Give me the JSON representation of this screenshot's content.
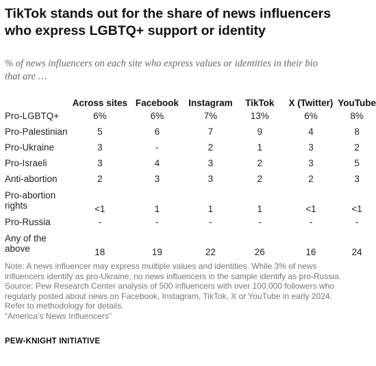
{
  "header": {
    "title_lines": [
      "TikTok stands out for the share of news influencers",
      "who express LGBTQ+ support or identity"
    ],
    "subtitle_lines": [
      "% of news influencers on each site who express values or identities in their bio",
      "that are …"
    ]
  },
  "chart_data": {
    "type": "table",
    "columns": [
      "Across sites",
      "Facebook",
      "Instagram",
      "TikTok",
      "X (Twitter)",
      "YouTube"
    ],
    "rows": [
      {
        "label": [
          "Pro-LGBTQ+"
        ],
        "values": [
          "6%",
          "6%",
          "7%",
          "13%",
          "6%",
          "8%"
        ]
      },
      {
        "label": [
          "Pro-Palestinian"
        ],
        "values": [
          "5",
          "6",
          "7",
          "9",
          "4",
          "8"
        ]
      },
      {
        "label": [
          "Pro-Ukraine"
        ],
        "values": [
          "3",
          "-",
          "2",
          "1",
          "3",
          "2"
        ]
      },
      {
        "label": [
          "Pro-Israeli"
        ],
        "values": [
          "3",
          "4",
          "3",
          "2",
          "3",
          "5"
        ]
      },
      {
        "label": [
          "Anti-abortion"
        ],
        "values": [
          "2",
          "3",
          "3",
          "2",
          "2",
          "3"
        ]
      },
      {
        "label": [
          "Pro-abortion",
          "rights"
        ],
        "values": [
          "<1",
          "1",
          "1",
          "1",
          "<1",
          "<1"
        ]
      },
      {
        "label": [
          "Pro-Russia"
        ],
        "values": [
          "-",
          "-",
          "-",
          "-",
          "-",
          "-"
        ]
      },
      {
        "label": [
          "Any of the",
          "above"
        ],
        "values": [
          "18",
          "19",
          "22",
          "26",
          "16",
          "24"
        ]
      }
    ]
  },
  "notes": {
    "lines": [
      "Note: A news influencer may express multiple values and identities. While 3% of news",
      "influencers identify as pro-Ukraine, no news influencers in the sample identify as pro-Russia.",
      "Source: Pew Research Center analysis of 500 influencers with over 100,000 followers who",
      "regularly posted about news on Facebook, Instagram, TikTok, X or YouTube in early 2024.",
      "Refer to methodology for details.",
      "“America’s News Influencers”"
    ]
  },
  "footer": {
    "brand": "PEW-KNIGHT INITIATIVE"
  }
}
